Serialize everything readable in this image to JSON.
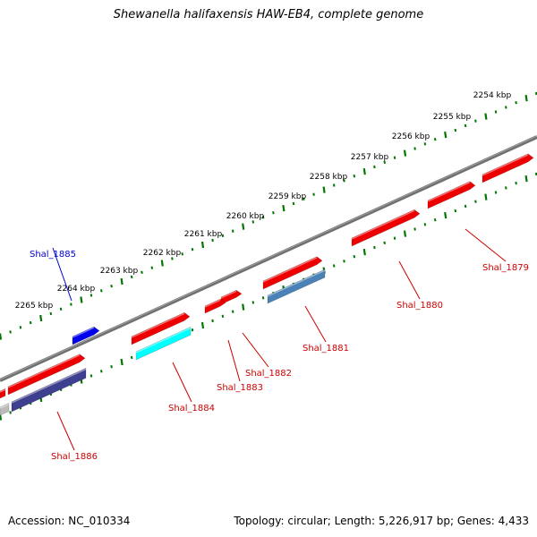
{
  "title": "Shewanella halifaxensis HAW-EB4, complete genome",
  "footer": {
    "accession": "Accession: NC_010334",
    "summary": "Topology: circular; Length: 5,226,917 bp; Genes: 4,433"
  },
  "ticks": [
    {
      "label": "2254 kbp"
    },
    {
      "label": "2255 kbp"
    },
    {
      "label": "2256 kbp"
    },
    {
      "label": "2257 kbp"
    },
    {
      "label": "2258 kbp"
    },
    {
      "label": "2259 kbp"
    },
    {
      "label": "2260 kbp"
    },
    {
      "label": "2261 kbp"
    },
    {
      "label": "2262 kbp"
    },
    {
      "label": "2263 kbp"
    },
    {
      "label": "2264 kbp"
    },
    {
      "label": "2265 kbp"
    }
  ],
  "genes": [
    {
      "label": "Shal_1879",
      "color": "#cc0000"
    },
    {
      "label": "Shal_1880",
      "color": "#cc0000"
    },
    {
      "label": "Shal_1881",
      "color": "#cc0000"
    },
    {
      "label": "Shal_1882",
      "color": "#cc0000"
    },
    {
      "label": "Shal_1883",
      "color": "#cc0000"
    },
    {
      "label": "Shal_1884",
      "color": "#cc0000"
    },
    {
      "label": "Shal_1885",
      "color": "#0000cc"
    },
    {
      "label": "Shal_1886",
      "color": "#cc0000"
    }
  ],
  "colors": {
    "backbone": "#777777",
    "tick": "#007700",
    "cds_forward": "#ee0000",
    "cds_reverse": "#ee0000",
    "blue_gene": "#0000ee",
    "steelblue_gene": "#4a82b8",
    "cyan_gene": "#00ffff",
    "purple_gene": "#3f3f8f",
    "gray_gene": "#bbbbbb"
  }
}
